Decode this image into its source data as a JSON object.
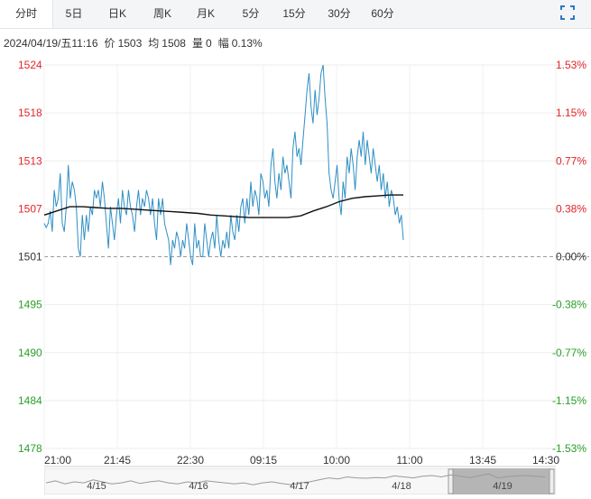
{
  "tabs": [
    "分时",
    "5日",
    "日K",
    "周K",
    "月K",
    "5分",
    "15分",
    "30分",
    "60分"
  ],
  "active_tab": 0,
  "info": {
    "datetime": "2024/04/19/五11:16",
    "price_label": "价",
    "price": "1503",
    "avg_label": "均",
    "avg": "1508",
    "vol_label": "量",
    "vol": "0",
    "amp_label": "幅",
    "amp": "0.13%"
  },
  "icons": {
    "fullscreen": "fullscreen-icon"
  },
  "colors": {
    "up": "#e0262a",
    "down": "#2aa02a",
    "flat": "#333333",
    "price_line": "#2f8fc4",
    "avg_line": "#111111"
  },
  "chart_data": {
    "type": "line",
    "title": "",
    "xlabel": "",
    "ylabel": "",
    "ylim": [
      1478,
      1524
    ],
    "prev_close": 1501,
    "y_ticks": [
      "1524",
      "1518",
      "1513",
      "1507",
      "1501",
      "1495",
      "1490",
      "1484",
      "1478"
    ],
    "pct_ticks": [
      "1.53%",
      "1.15%",
      "0.77%",
      "0.38%",
      "0.00%",
      "-0.38%",
      "-0.77%",
      "-1.15%",
      "-1.53%"
    ],
    "x_ticks": [
      "21:00",
      "21:45",
      "22:30",
      "09:15",
      "10:00",
      "11:00",
      "13:45",
      "14:30"
    ],
    "grid": true,
    "series": [
      {
        "values": [
          1505,
          1504.5,
          1505,
          1506.5,
          1504,
          1509,
          1507,
          1508,
          1511,
          1505,
          1504,
          1507,
          1512,
          1508,
          1510,
          1509,
          1507,
          1502,
          1501,
          1506,
          1503,
          1506,
          1504,
          1507,
          1506,
          1509,
          1508,
          1509,
          1507,
          1510,
          1508,
          1505,
          1502,
          1507,
          1505,
          1503,
          1506,
          1508,
          1505,
          1509,
          1507,
          1506,
          1509,
          1507,
          1506,
          1504,
          1507,
          1509,
          1506,
          1508,
          1507,
          1509,
          1508,
          1506,
          1508,
          1505,
          1503,
          1508,
          1506,
          1508,
          1505,
          1504,
          1503,
          1500,
          1503,
          1502,
          1504,
          1503,
          1501,
          1503,
          1502,
          1505,
          1503,
          1501,
          1500,
          1505,
          1502,
          1503,
          1501,
          1501,
          1505,
          1503,
          1501,
          1503,
          1504,
          1502,
          1506,
          1503,
          1501,
          1503,
          1502,
          1504,
          1502,
          1506,
          1504,
          1503,
          1506,
          1504,
          1507,
          1508,
          1505,
          1508,
          1506,
          1510,
          1507,
          1509,
          1508,
          1506,
          1511,
          1510,
          1508,
          1509,
          1507,
          1512,
          1514,
          1510,
          1508,
          1511,
          1509,
          1513,
          1511,
          1512,
          1510,
          1508,
          1514,
          1516,
          1513,
          1514,
          1512,
          1515,
          1518,
          1521,
          1523,
          1519,
          1517,
          1521,
          1518,
          1520,
          1523,
          1524,
          1520,
          1517,
          1511,
          1509,
          1508,
          1510,
          1512,
          1508,
          1506,
          1510,
          1508,
          1513,
          1511,
          1514,
          1512,
          1509,
          1513,
          1515,
          1513,
          1516,
          1512,
          1515,
          1513,
          1511,
          1514,
          1512,
          1510,
          1512,
          1509,
          1511,
          1508,
          1510,
          1507,
          1509,
          1508,
          1506,
          1507,
          1505,
          1506,
          1503
        ],
        "x_start": "21:00",
        "x_end": "11:16"
      },
      {
        "values": [
          1506,
          1506.5,
          1507,
          1507,
          1506.9,
          1506.8,
          1506.8,
          1506.7,
          1506.6,
          1506.5,
          1506.4,
          1506.3,
          1506.2,
          1506.0,
          1505.9,
          1505.8,
          1505.7,
          1505.7,
          1505.7,
          1505.7,
          1505.9,
          1506.5,
          1507.0,
          1507.6,
          1508.0,
          1508.2,
          1508.3,
          1508.4,
          1508.4
        ],
        "x_start": "21:00",
        "x_end": "11:16"
      }
    ]
  },
  "navigator": {
    "labels": [
      "4/15",
      "4/16",
      "4/17",
      "4/18",
      "4/19"
    ],
    "series": [
      0.45,
      0.55,
      0.4,
      0.5,
      0.45,
      0.6,
      0.5,
      0.4,
      0.45,
      0.55,
      0.42,
      0.5,
      0.55,
      0.45,
      0.4,
      0.5,
      0.45,
      0.55,
      0.5,
      0.45,
      0.4,
      0.45,
      0.35,
      0.45,
      0.5,
      0.42,
      0.35,
      0.45,
      0.5,
      0.6,
      0.7,
      0.65,
      0.75,
      0.7,
      0.68,
      0.72,
      0.7,
      0.8,
      0.75,
      0.7,
      0.78,
      0.82,
      0.75,
      0.85,
      0.78,
      0.72,
      0.8,
      0.9,
      0.7,
      0.76,
      0.8,
      0.82,
      0.78,
      0.75
    ]
  }
}
